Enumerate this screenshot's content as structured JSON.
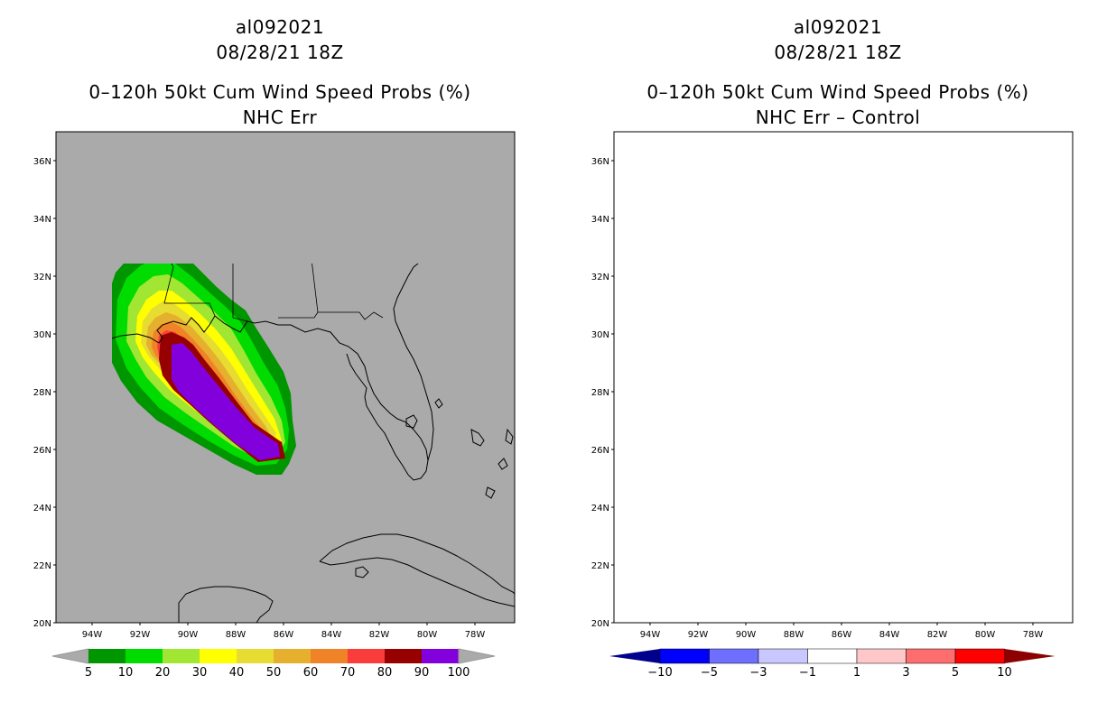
{
  "panels": [
    {
      "storm_id": "al092021",
      "date": "08/28/21 18Z",
      "title": "0–120h 50kt Cum Wind Speed Probs (%)",
      "subtitle": "NHC Err",
      "background_color": "#aaaaaa",
      "colorbar": {
        "labels": [
          "5",
          "10",
          "20",
          "30",
          "40",
          "50",
          "60",
          "70",
          "80",
          "90",
          "100"
        ],
        "colors": [
          "#009600",
          "#00dc00",
          "#a0e632",
          "#ffff00",
          "#e6dc32",
          "#e6af2d",
          "#f08228",
          "#fa3c3c",
          "#960000",
          "#8200dc"
        ],
        "end_color": "#aaaaaa"
      }
    },
    {
      "storm_id": "al092021",
      "date": "08/28/21 18Z",
      "title": "0–120h 50kt Cum Wind Speed Probs (%)",
      "subtitle": "NHC Err – Control",
      "background_color": "#ffffff",
      "colorbar": {
        "labels": [
          "−10",
          "−5",
          "−3",
          "−1",
          "1",
          "3",
          "5",
          "10"
        ],
        "colors": [
          "#0000ff",
          "#6e6eff",
          "#c8c8ff",
          "#ffffff",
          "#ffc8c8",
          "#ff6e6e",
          "#ff0000"
        ],
        "low_color": "#00008c",
        "high_color": "#8c0000"
      }
    }
  ],
  "map": {
    "lat_labels": [
      "20N",
      "22N",
      "24N",
      "26N",
      "28N",
      "30N",
      "32N",
      "34N",
      "36N"
    ],
    "lon_labels": [
      "94W",
      "92W",
      "90W",
      "88W",
      "86W",
      "84W",
      "82W",
      "80W",
      "78W"
    ]
  }
}
